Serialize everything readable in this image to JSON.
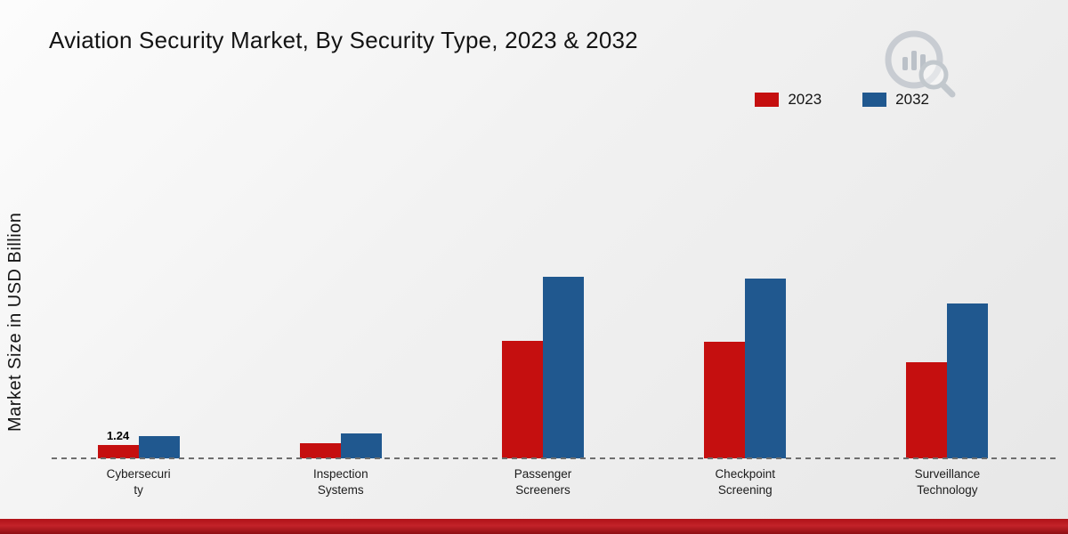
{
  "title": "Aviation Security Market, By Security Type, 2023 & 2032",
  "legend": {
    "items": [
      {
        "label": "2023",
        "color": "#c50f0f"
      },
      {
        "label": "2032",
        "color": "#20588f"
      }
    ]
  },
  "colors": {
    "series_2023": "#c50f0f",
    "series_2032": "#20588f",
    "bottom_accent": "#b01218",
    "logo_gray": "#c3c9cf"
  },
  "chart_data": {
    "type": "bar",
    "title": "Aviation Security Market, By Security Type, 2023 & 2032",
    "ylabel": "Market Size in USD Billion",
    "unit": "USD Billion",
    "categories": [
      "Cybersecurity",
      "Inspection Systems",
      "Passenger Screeners",
      "Checkpoint Screening",
      "Surveillance Technology"
    ],
    "categories_display": [
      "Cybersecuri\nty",
      "Inspection\nSystems",
      "Passenger\nScreeners",
      "Checkpoint\nScreening",
      "Surveillance\nTechnology"
    ],
    "series": [
      {
        "name": "2023",
        "color": "#c50f0f",
        "values": [
          1.24,
          1.4,
          11.0,
          10.9,
          9.0
        ]
      },
      {
        "name": "2032",
        "color": "#20588f",
        "values": [
          2.1,
          2.3,
          17.0,
          16.8,
          14.5
        ]
      }
    ],
    "data_labels": [
      {
        "series": 0,
        "category": 0,
        "text": "1.24"
      }
    ],
    "ylim": [
      0,
      18
    ],
    "grid": false,
    "legend_position": "top-right",
    "baseline_value": 0
  }
}
